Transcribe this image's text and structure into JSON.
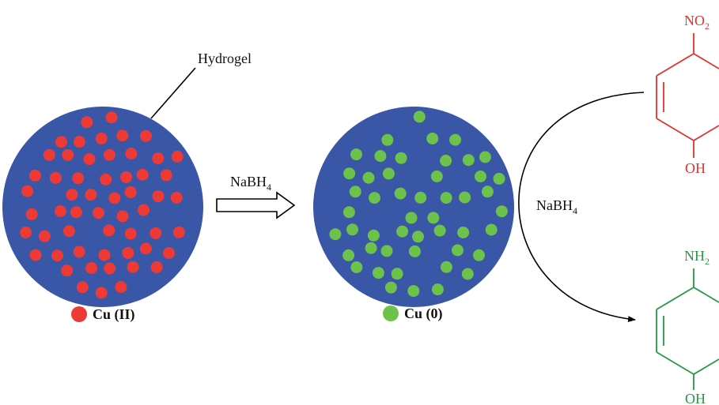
{
  "labels": {
    "hydrogel": "Hydrogel",
    "arrow_reagent": "NaBH",
    "arrow_reagent_sub": "4",
    "curve_reagent": "NaBH",
    "curve_reagent_sub": "4"
  },
  "legend": {
    "cu2": "Cu (II)",
    "cu0": "Cu (0)"
  },
  "molecules": {
    "top": {
      "group": "NO",
      "group_sub": "2",
      "bottom": "OH"
    },
    "bottom": {
      "group": "NH",
      "group_sub": "2",
      "bottom": "OH"
    }
  },
  "colors": {
    "hydrogel": "#3a56a7",
    "cu2": "#ee3a35",
    "cu0": "#6cc24a",
    "nitro": "#e3312e",
    "amino": "#239a43",
    "line": "#000000"
  }
}
